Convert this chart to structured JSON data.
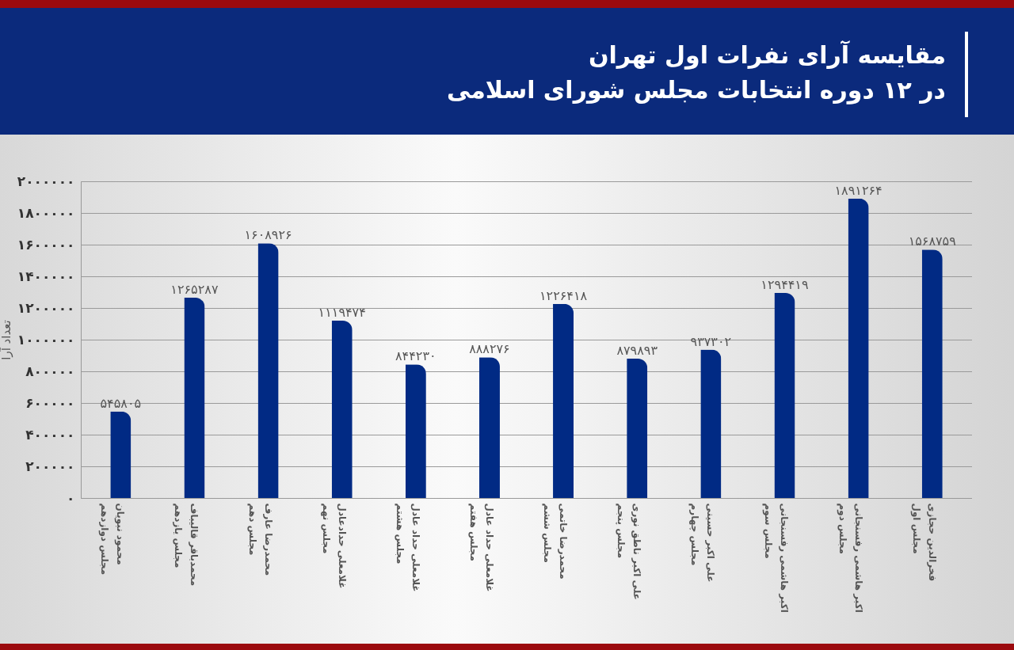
{
  "chart_data": {
    "type": "bar",
    "title": "مقایسه آرای نفرات اول تهران",
    "subtitle": "در ۱۲ دوره انتخابات مجلس شورای اسلامی",
    "ylabel": "تعداد آرا",
    "categories": [
      "محمود نبویان\nمجلس دوازدهم",
      "محمدباقر قالیباف\nمجلس یازدهم",
      "محمدرضا عارف\nمجلس دهم",
      "غلامعلی حدادعادل\nمجلس نهم",
      "غلامعلی حداد عادل\nمجلس هشتم",
      "غلامعلی حداد عادل\nمجلس هفتم",
      "محمدرضا خاتمی\nمجلس ششم",
      "علی اکبر ناطق نوری\nمجلس پنجم",
      "علی اکبر حسینی\nمجلس چهارم",
      "اکبر هاشمی رفسنجانی\nمجلس سوم",
      "اکبر هاشمی رفسنجانی\nمجلس دوم",
      "فخرالدین حجازی\nمجلس اول"
    ],
    "values": [
      545805,
      1265287,
      1608926,
      1119474,
      844230,
      888276,
      1226418,
      879893,
      937302,
      1294419,
      1891264,
      1568759
    ],
    "value_labels": [
      "۵۴۵۸۰۵",
      "۱۲۶۵۲۸۷",
      "۱۶۰۸۹۲۶",
      "۱۱۱۹۴۷۴",
      "۸۴۴۲۳۰",
      "۸۸۸۲۷۶",
      "۱۲۲۶۴۱۸",
      "۸۷۹۸۹۳",
      "۹۳۷۳۰۲",
      "۱۲۹۴۴۱۹",
      "۱۸۹۱۲۶۴",
      "۱۵۶۸۷۵۹"
    ],
    "color": "#012a84",
    "ylim": [
      0,
      2000000
    ],
    "yticks": [
      {
        "value": 0,
        "label": "۰"
      },
      {
        "value": 200000,
        "label": "۲۰۰۰۰۰"
      },
      {
        "value": 400000,
        "label": "۴۰۰۰۰۰"
      },
      {
        "value": 600000,
        "label": "۶۰۰۰۰۰"
      },
      {
        "value": 800000,
        "label": "۸۰۰۰۰۰"
      },
      {
        "value": 1000000,
        "label": "۱۰۰۰۰۰۰"
      },
      {
        "value": 1200000,
        "label": "۱۲۰۰۰۰۰"
      },
      {
        "value": 1400000,
        "label": "۱۴۰۰۰۰۰"
      },
      {
        "value": 1600000,
        "label": "۱۶۰۰۰۰۰"
      },
      {
        "value": 1800000,
        "label": "۱۸۰۰۰۰۰"
      },
      {
        "value": 2000000,
        "label": "۲۰۰۰۰۰۰"
      }
    ],
    "grid": "y"
  }
}
